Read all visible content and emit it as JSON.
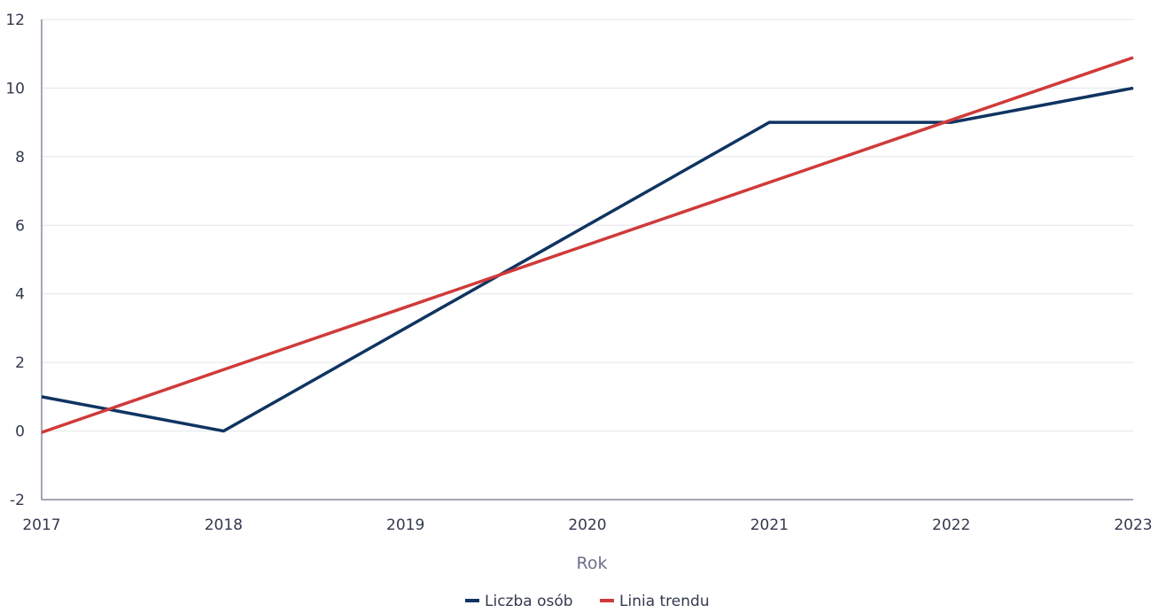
{
  "chart_data": {
    "type": "line",
    "x": [
      2017,
      2018,
      2019,
      2020,
      2021,
      2022,
      2023
    ],
    "series": [
      {
        "name": "Liczba osób",
        "color": "#0f3461",
        "values": [
          1,
          0,
          3,
          6,
          9,
          9,
          10
        ]
      },
      {
        "name": "Linia trendu",
        "color": "#d03a3a",
        "values": [
          -0.04,
          1.79,
          3.61,
          5.43,
          7.25,
          9.07,
          10.89
        ]
      }
    ],
    "xlabel": "Rok",
    "ylabel": "",
    "ylim": [
      -2,
      12
    ],
    "yticks": [
      -2,
      0,
      2,
      4,
      6,
      8,
      10,
      12
    ],
    "xticks": [
      "2017",
      "2018",
      "2019",
      "2020",
      "2021",
      "2022",
      "2023"
    ],
    "grid": true,
    "legend_position": "bottom-center"
  }
}
